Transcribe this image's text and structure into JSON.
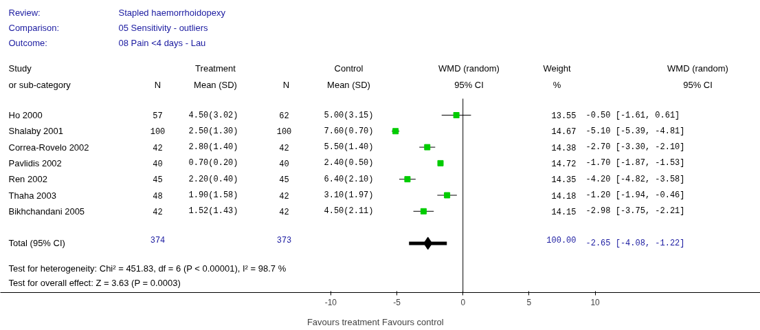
{
  "chart_data": {
    "type": "scatter",
    "orientation": "horizontal",
    "categories": [
      "Ho 2000",
      "Shalaby 2001",
      "Correa-Rovelo 2002",
      "Pavlidis 2002",
      "Ren 2002",
      "Thaha 2003",
      "Bikhchandani 2005",
      null,
      "Total (95% CI)"
    ],
    "series": [
      {
        "color": "#00cc00",
        "marker": "square",
        "values": [
          -0.5,
          -5.1,
          -2.7,
          -1.7,
          -4.2,
          -1.2,
          -2.98,
          null,
          null
        ],
        "errors": [
          [
            -1.61,
            0.61
          ],
          [
            -5.39,
            -4.81
          ],
          [
            -3.3,
            -2.1
          ],
          [
            -1.87,
            -1.53
          ],
          [
            -4.82,
            -3.58
          ],
          [
            -1.94,
            -0.46
          ],
          [
            -3.75,
            -2.21
          ],
          null,
          null
        ]
      },
      {
        "color": "#000000",
        "marker": "diamond",
        "values": [
          null,
          null,
          null,
          null,
          null,
          null,
          null,
          null,
          -2.65
        ],
        "errors": [
          null,
          null,
          null,
          null,
          null,
          null,
          null,
          null,
          [
            -4.08,
            -1.22
          ]
        ]
      }
    ],
    "xlim": [
      -35,
      22.5
    ],
    "xticks": [
      -10,
      -5,
      0,
      5,
      10
    ],
    "xlabel": "Favours treatment     Favours control",
    "ref_lines": [
      {
        "axis": "x",
        "value": 0
      }
    ],
    "grid": false,
    "annotations": [
      "Review:",
      "Stapled haemorrhoidopexy",
      "Comparison:",
      "05 Sensitivity - outliers",
      "Outcome:",
      "08 Pain <4 days - Lau",
      "Study\nor sub-category",
      "N",
      "Treatment\nMean (SD)",
      "N",
      "Control\nMean (SD)",
      "WMD (random)\n95% CI",
      "Weight\n%",
      "WMD (random)\n95% CI",
      "57",
      "4.50(3.02)",
      "62",
      "5.00(3.15)",
      "13.55",
      "-0.50 [-1.61, 0.61]",
      "100",
      "2.50(1.30)",
      "100",
      "7.60(0.70)",
      "14.67",
      "-5.10 [-5.39, -4.81]",
      "42",
      "2.80(1.40)",
      "42",
      "5.50(1.40)",
      "14.38",
      "-2.70 [-3.30, -2.10]",
      "40",
      "0.70(0.20)",
      "40",
      "2.40(0.50)",
      "14.72",
      "-1.70 [-1.87, -1.53]",
      "45",
      "2.20(0.40)",
      "45",
      "6.40(2.10)",
      "14.35",
      "-4.20 [-4.82, -3.58]",
      "48",
      "1.90(1.58)",
      "42",
      "3.10(1.97)",
      "14.18",
      "-1.20 [-1.94, -0.46]",
      "42",
      "1.52(1.43)",
      "42",
      "4.50(2.11)",
      "14.15",
      "-2.98 [-3.75, -2.21]",
      "374",
      "373",
      "100.00",
      "-2.65 [-4.08, -1.22]",
      "Test for heterogeneity: Chi² = 451.83, df = 6 (P < 0.00001), I² = 98.7 %",
      "Test for overall effect: Z = 3.63 (P = 0.0003)"
    ]
  }
}
